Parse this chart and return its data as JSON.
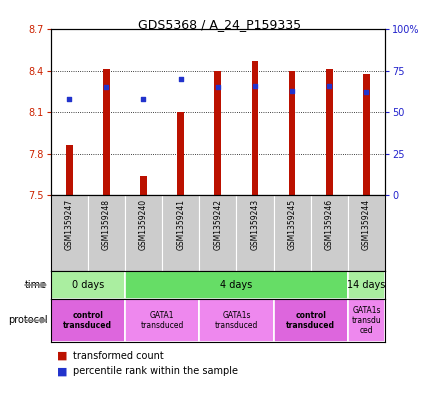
{
  "title": "GDS5368 / A_24_P159335",
  "samples": [
    "GSM1359247",
    "GSM1359248",
    "GSM1359240",
    "GSM1359241",
    "GSM1359242",
    "GSM1359243",
    "GSM1359245",
    "GSM1359246",
    "GSM1359244"
  ],
  "bar_values": [
    7.86,
    8.41,
    7.64,
    8.1,
    8.4,
    8.47,
    8.4,
    8.41,
    8.38
  ],
  "bar_bottom": 7.5,
  "blue_values": [
    58,
    65,
    58,
    70,
    65,
    66,
    63,
    66,
    62
  ],
  "ylim": [
    7.5,
    8.7
  ],
  "yticks": [
    7.5,
    7.8,
    8.1,
    8.4,
    8.7
  ],
  "ytick_labels": [
    "7.5",
    "7.8",
    "8.1",
    "8.4",
    "8.7"
  ],
  "right_yticks": [
    0,
    25,
    50,
    75,
    100
  ],
  "right_ytick_labels": [
    "0",
    "25",
    "50",
    "75",
    "100%"
  ],
  "bar_color": "#bb1100",
  "blue_color": "#2233cc",
  "time_groups": [
    {
      "label": "0 days",
      "start": 0,
      "end": 2,
      "color": "#aaeea0"
    },
    {
      "label": "4 days",
      "start": 2,
      "end": 8,
      "color": "#66dd66"
    },
    {
      "label": "14 days",
      "start": 8,
      "end": 9,
      "color": "#aaeea0"
    }
  ],
  "protocol_groups": [
    {
      "label": "control\ntransduced",
      "start": 0,
      "end": 2,
      "color": "#dd66dd",
      "bold": true
    },
    {
      "label": "GATA1\ntransduced",
      "start": 2,
      "end": 4,
      "color": "#ee88ee",
      "bold": false
    },
    {
      "label": "GATA1s\ntransduced",
      "start": 4,
      "end": 6,
      "color": "#ee88ee",
      "bold": false
    },
    {
      "label": "control\ntransduced",
      "start": 6,
      "end": 8,
      "color": "#dd66dd",
      "bold": true
    },
    {
      "label": "GATA1s\ntransdu\nced",
      "start": 8,
      "end": 9,
      "color": "#ee88ee",
      "bold": false
    }
  ],
  "sample_bg_color": "#cccccc",
  "left_label_color": "#cc2200",
  "right_label_color": "#2222cc",
  "n_samples": 9
}
